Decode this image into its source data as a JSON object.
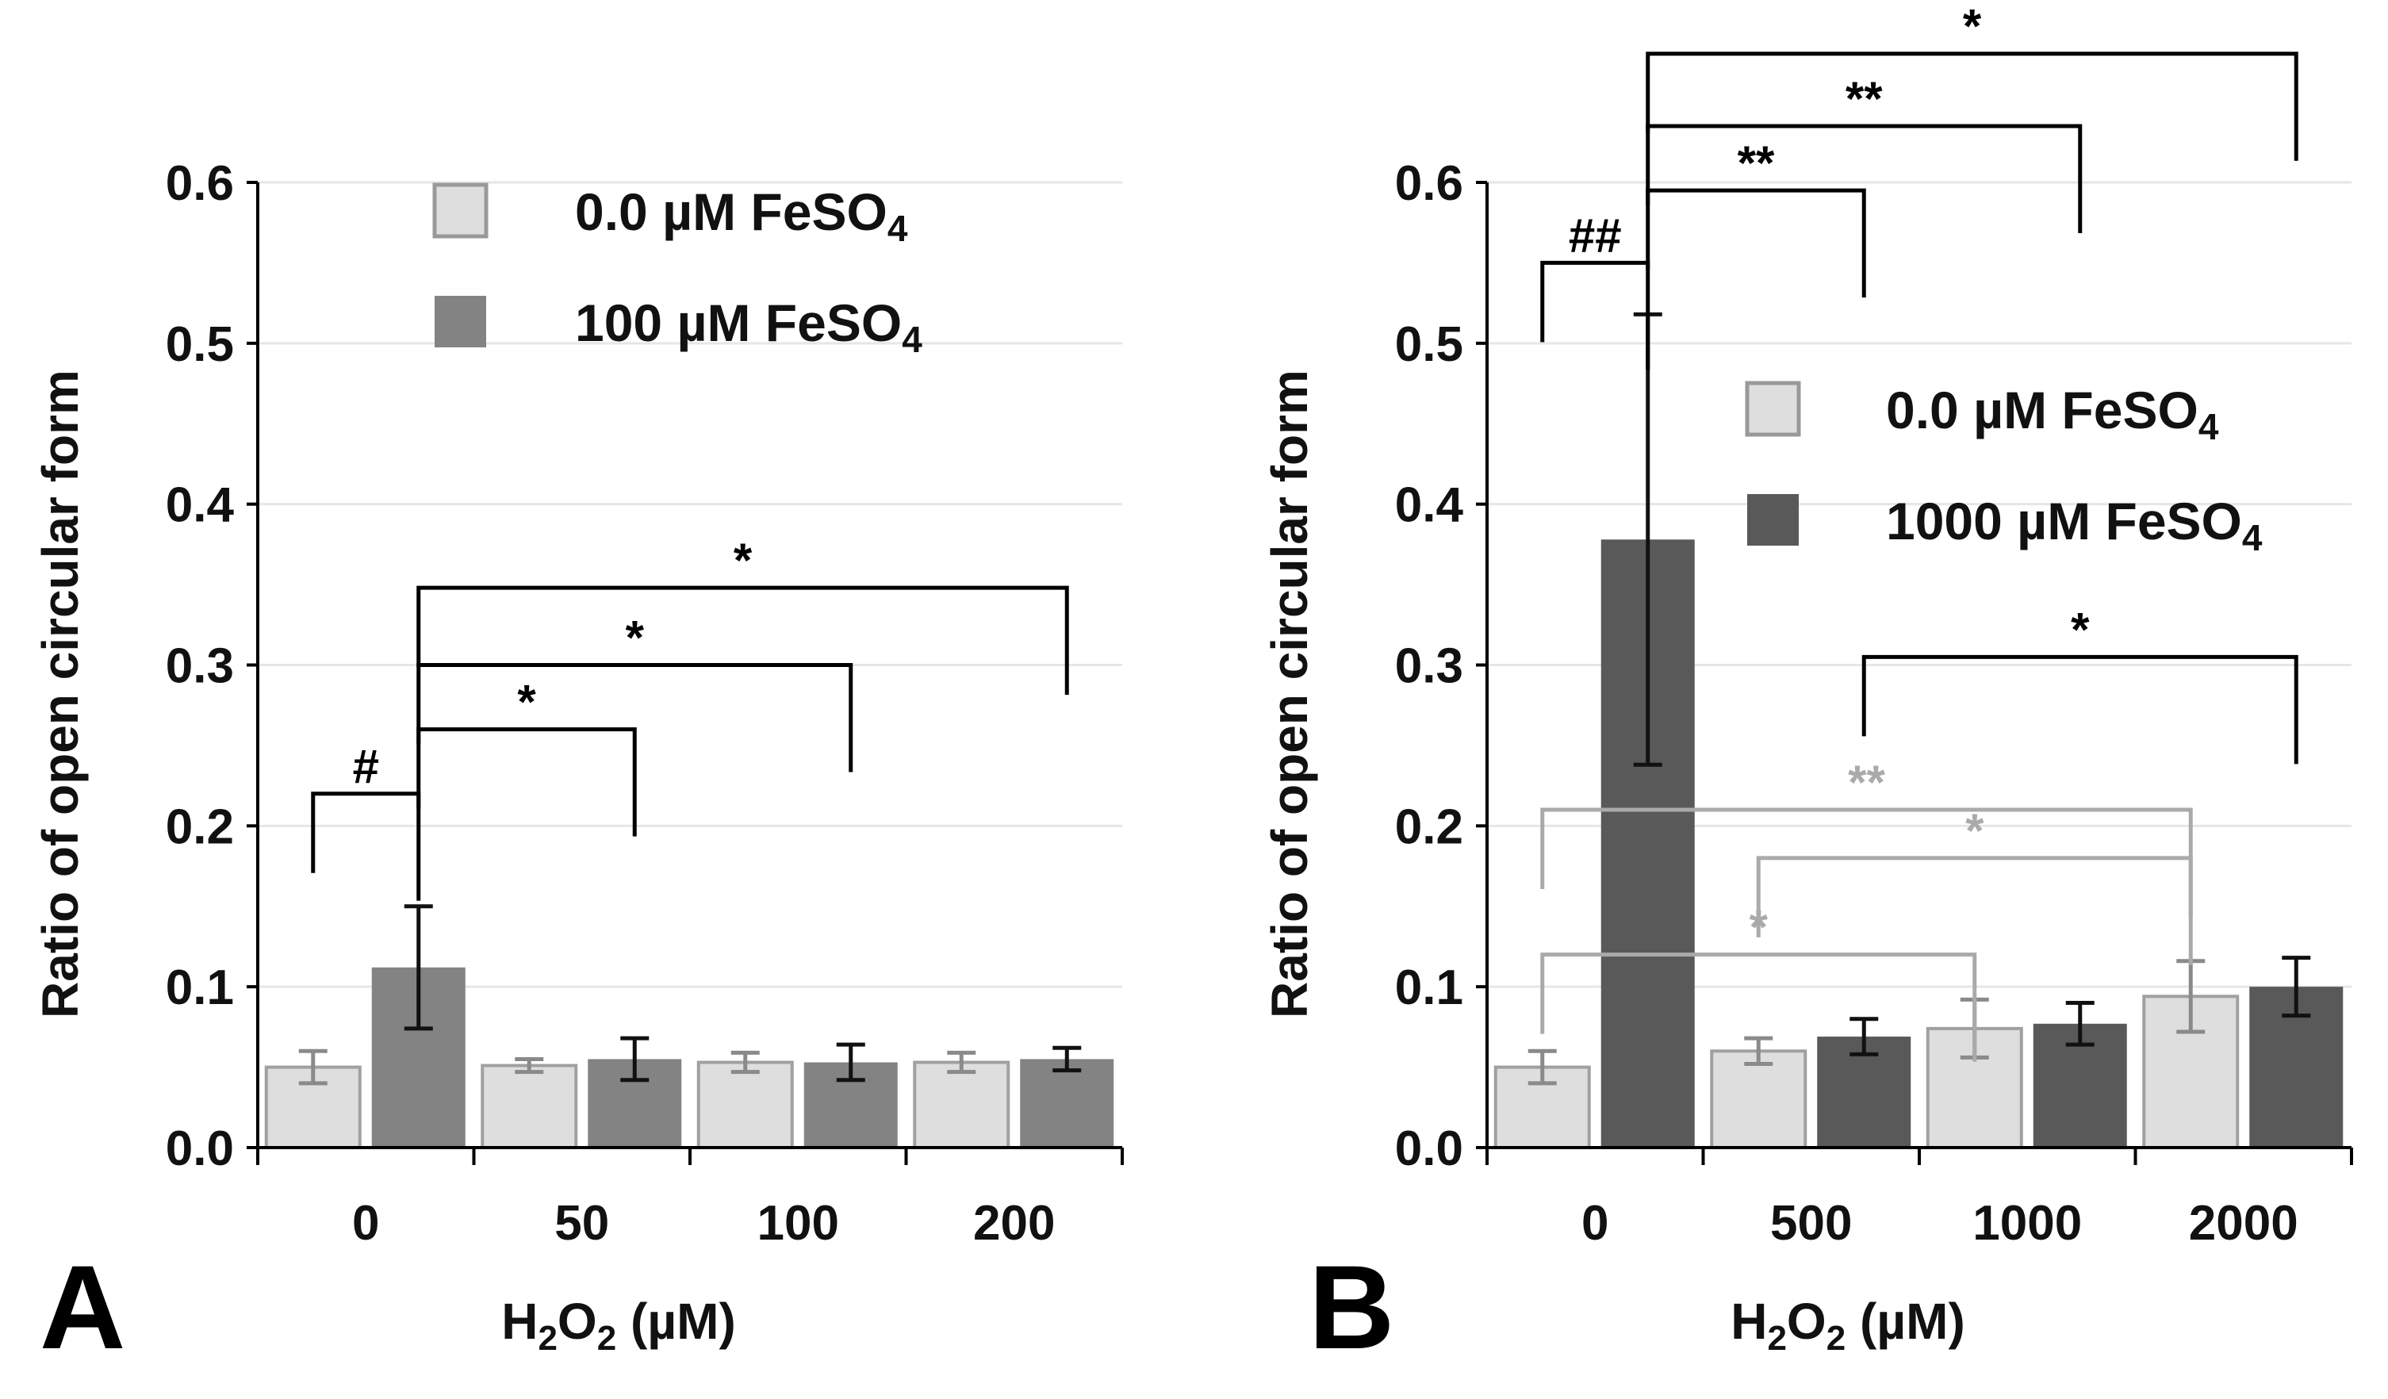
{
  "chart_data": [
    {
      "panel": "A",
      "type": "bar",
      "ylabel": "Ratio of open circular form",
      "xlabel": "H2O2 (µM)",
      "xlabel_parts": {
        "h": "H",
        "two_a": "2",
        "o": "O",
        "two_b": "2",
        "unit": " (µM)"
      },
      "ylim": [
        0,
        0.6
      ],
      "yticks": [
        "0.0",
        "0.1",
        "0.2",
        "0.3",
        "0.4",
        "0.5",
        "0.6"
      ],
      "categories": [
        "0",
        "50",
        "100",
        "200"
      ],
      "series": [
        {
          "name": "0.0 µM FeSO4",
          "label": "0.0 µM FeSO",
          "sub": "4",
          "color": "#dedede",
          "values": [
            0.05,
            0.051,
            0.053,
            0.053
          ],
          "errors": [
            0.01,
            0.004,
            0.006,
            0.006
          ]
        },
        {
          "name": "100 µM FeSO4",
          "label": "100 µM FeSO",
          "sub": "4",
          "color": "#838383",
          "values": [
            0.112,
            0.055,
            0.053,
            0.055
          ],
          "errors": [
            0.038,
            0.013,
            0.011,
            0.007
          ]
        }
      ],
      "significance": [
        {
          "from": [
            0,
            0
          ],
          "to": [
            0,
            1
          ],
          "label": "#",
          "color": "#000000",
          "y": 0.22
        },
        {
          "from": [
            0,
            1
          ],
          "to": [
            1,
            1
          ],
          "label": "*",
          "color": "#000000",
          "y": 0.26
        },
        {
          "from": [
            0,
            1
          ],
          "to": [
            2,
            1
          ],
          "label": "*",
          "color": "#000000",
          "y": 0.3
        },
        {
          "from": [
            0,
            1
          ],
          "to": [
            3,
            1
          ],
          "label": "*",
          "color": "#000000",
          "y": 0.348
        }
      ],
      "legend_position": "top"
    },
    {
      "panel": "B",
      "type": "bar",
      "ylabel": "Ratio of open circular form",
      "xlabel": "H2O2 (µM)",
      "xlabel_parts": {
        "h": "H",
        "two_a": "2",
        "o": "O",
        "two_b": "2",
        "unit": " (µM)"
      },
      "ylim": [
        0,
        0.6
      ],
      "yticks": [
        "0.0",
        "0.1",
        "0.2",
        "0.3",
        "0.4",
        "0.5",
        "0.6"
      ],
      "categories": [
        "0",
        "500",
        "1000",
        "2000"
      ],
      "series": [
        {
          "name": "0.0 µM FeSO4",
          "label": "0.0 µM FeSO",
          "sub": "4",
          "color": "#dedede",
          "values": [
            0.05,
            0.06,
            0.074,
            0.094
          ],
          "errors": [
            0.01,
            0.008,
            0.018,
            0.022
          ]
        },
        {
          "name": "1000 µM FeSO4",
          "label": "1000 µM FeSO",
          "sub": "4",
          "color": "#595959",
          "values": [
            0.378,
            0.069,
            0.077,
            0.1
          ],
          "errors": [
            0.14,
            0.011,
            0.013,
            0.018
          ]
        }
      ],
      "significance": [
        {
          "from": [
            0,
            0
          ],
          "to": [
            0,
            1
          ],
          "label": "##",
          "color": "#000000",
          "y": 0.55
        },
        {
          "from": [
            0,
            1
          ],
          "to": [
            1,
            1
          ],
          "label": "**",
          "color": "#000000",
          "y": 0.595
        },
        {
          "from": [
            0,
            1
          ],
          "to": [
            2,
            1
          ],
          "label": "**",
          "color": "#000000",
          "y": 0.635
        },
        {
          "from": [
            0,
            1
          ],
          "to": [
            3,
            1
          ],
          "label": "*",
          "color": "#000000",
          "y": 0.68
        },
        {
          "from": [
            1,
            1
          ],
          "to": [
            3,
            1
          ],
          "label": "*",
          "color": "#000000",
          "y": 0.305
        },
        {
          "from": [
            0,
            0
          ],
          "to": [
            3,
            0
          ],
          "label": "**",
          "color": "#aaaaaa",
          "y": 0.21
        },
        {
          "from": [
            1,
            0
          ],
          "to": [
            3,
            0
          ],
          "label": "*",
          "color": "#aaaaaa",
          "y": 0.18
        },
        {
          "from": [
            0,
            0
          ],
          "to": [
            2,
            0
          ],
          "label": "*",
          "color": "#aaaaaa",
          "y": 0.12
        }
      ],
      "legend_position": "center-right"
    }
  ]
}
